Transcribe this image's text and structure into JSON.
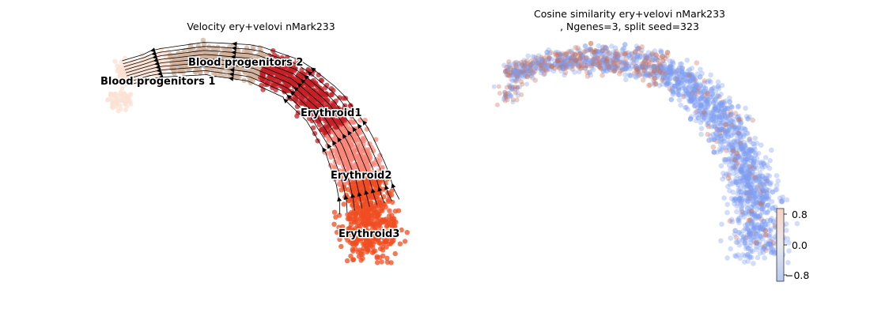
{
  "chart_data": [
    {
      "type": "scatter",
      "subtype": "umap-embedding-with-velocity-streamlines",
      "title": "Velocity ery+velovi nMark233",
      "axes_visible": false,
      "grid": false,
      "legend": "on-data",
      "clusters": [
        {
          "name": "Blood progenitors 1",
          "color": "#fbe1d3"
        },
        {
          "name": "Blood progenitors 2",
          "color": "#d1b19c"
        },
        {
          "name": "Erythroid1",
          "color": "#c62027"
        },
        {
          "name": "Erythroid2",
          "color": "#f8877a"
        },
        {
          "name": "Erythroid3",
          "color": "#ef4e22"
        }
      ],
      "streamline_color": "#000000"
    },
    {
      "type": "scatter",
      "subtype": "umap-embedding-colored-by-value",
      "title": "Cosine similarity ery+velovi nMark233",
      "subtitle": ", Ngenes=3, split seed=323",
      "axes_visible": false,
      "grid": false,
      "colormap": "coolwarm",
      "colorbar": {
        "range": [
          -1.0,
          1.0
        ],
        "ticks": [
          0.8,
          0.0,
          -0.8
        ],
        "tick_labels": [
          "0.8",
          "0.0",
          "−0.8"
        ],
        "placement": "right"
      },
      "dominant_color": "#7f9ef2",
      "secondary_color": "#c86c54"
    }
  ]
}
